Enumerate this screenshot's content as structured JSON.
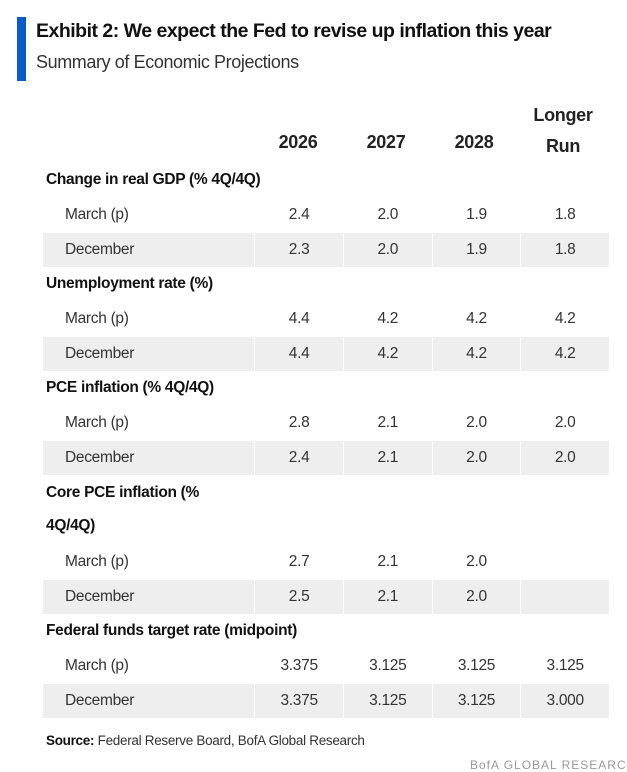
{
  "title": "Exhibit 2: We expect the Fed to revise up inflation this year",
  "subtitle": "Summary of Economic Projections",
  "columns": [
    "2026",
    "2027",
    "2028",
    "Longer Run"
  ],
  "groups": [
    {
      "label": "Change in real GDP (% 4Q/4Q)",
      "rows": [
        {
          "label": "March (p)",
          "values": [
            "2.4",
            "2.0",
            "1.9",
            "1.8"
          ]
        },
        {
          "label": "December",
          "values": [
            "2.3",
            "2.0",
            "1.9",
            "1.8"
          ]
        }
      ]
    },
    {
      "label": "Unemployment rate (%)",
      "rows": [
        {
          "label": "March (p)",
          "values": [
            "4.4",
            "4.2",
            "4.2",
            "4.2"
          ]
        },
        {
          "label": "December",
          "values": [
            "4.4",
            "4.2",
            "4.2",
            "4.2"
          ]
        }
      ]
    },
    {
      "label": "PCE inflation (% 4Q/4Q)",
      "rows": [
        {
          "label": "March (p)",
          "values": [
            "2.8",
            "2.1",
            "2.0",
            "2.0"
          ]
        },
        {
          "label": "December",
          "values": [
            "2.4",
            "2.1",
            "2.0",
            "2.0"
          ]
        }
      ]
    },
    {
      "label": "Core PCE inflation (% 4Q/4Q)",
      "rows": [
        {
          "label": "March (p)",
          "values": [
            "2.7",
            "2.1",
            "2.0",
            ""
          ]
        },
        {
          "label": "December",
          "values": [
            "2.5",
            "2.1",
            "2.0",
            ""
          ]
        }
      ]
    },
    {
      "label": "Federal funds target rate (midpoint)",
      "rows": [
        {
          "label": "March (p)",
          "values": [
            "3.375",
            "3.125",
            "3.125",
            "3.125"
          ]
        },
        {
          "label": "December",
          "values": [
            "3.375",
            "3.125",
            "3.125",
            "3.000"
          ]
        }
      ]
    }
  ],
  "source_label": "Source:",
  "source_text": " Federal Reserve Board, BofA Global Research",
  "watermark": "BofA GLOBAL RESEARCH",
  "accent_color": "#0a5cc8"
}
